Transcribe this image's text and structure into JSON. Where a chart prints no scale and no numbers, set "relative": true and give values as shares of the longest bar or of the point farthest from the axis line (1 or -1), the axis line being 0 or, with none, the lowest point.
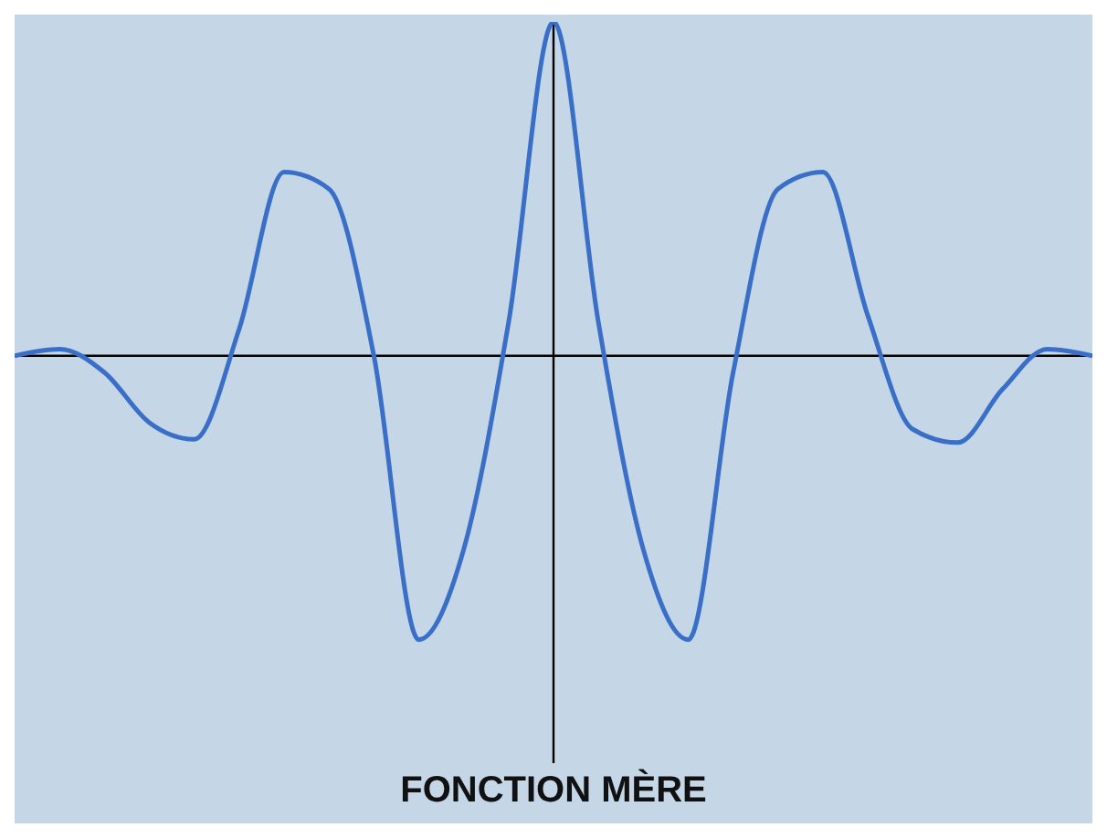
{
  "chart_data": {
    "type": "line",
    "relative": true,
    "xlabel": "FONCTION MÈRE",
    "marker": "none",
    "line_style": "solid",
    "categories": [
      null,
      null,
      null,
      null,
      null,
      null,
      null,
      null,
      null,
      null,
      null,
      null,
      null,
      null,
      null,
      null,
      null,
      null,
      null,
      null,
      null,
      null,
      null,
      null,
      null
    ],
    "series": [
      {
        "color": "#3a6fc8",
        "values": [
          0,
          0.02,
          -0.05,
          -0.2,
          -0.25,
          0.08,
          0.55,
          0.5,
          0,
          -0.85,
          -0.58,
          0.1,
          1,
          0.1,
          -0.58,
          -0.85,
          -0.05,
          0.5,
          0.55,
          0.12,
          -0.22,
          -0.26,
          -0.1,
          0.02,
          0
        ]
      }
    ]
  }
}
